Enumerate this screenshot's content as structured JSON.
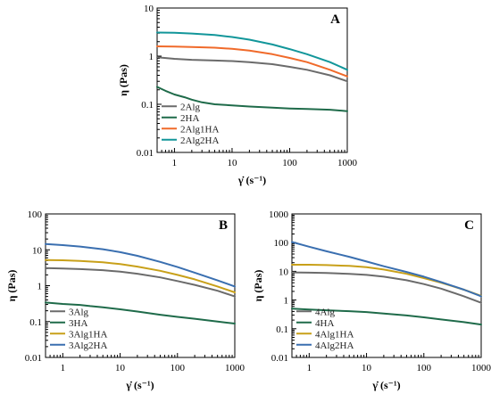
{
  "colors": {
    "Alg": "#6b6b6b",
    "HA": "#1f6b4a",
    "Alg1HA_A": "#f06a2a",
    "Alg1HA_BC": "#c8a019",
    "Alg2HA_A": "#12969a",
    "Alg2HA_BC": "#3a6fb0"
  },
  "chart_data": [
    {
      "panel": "A",
      "type": "line",
      "xscale": "log",
      "yscale": "log",
      "xlim": [
        0.5,
        1000
      ],
      "ylim": [
        0.01,
        10
      ],
      "xlabel": "γ̇ (s⁻¹)",
      "ylabel": "η (Pas)",
      "xticks": [
        "1",
        "10",
        "100",
        "1000"
      ],
      "yticks": [
        "0.01",
        "0.1",
        "1",
        "10"
      ],
      "legend_position": "bottom-left",
      "series": [
        {
          "name": "2Alg",
          "color_key": "Alg",
          "x": [
            0.5,
            1,
            2,
            5,
            10,
            20,
            50,
            100,
            200,
            500,
            1000
          ],
          "y": [
            0.95,
            0.88,
            0.84,
            0.81,
            0.79,
            0.75,
            0.68,
            0.6,
            0.52,
            0.4,
            0.3
          ]
        },
        {
          "name": "2HA",
          "color_key": "HA",
          "x": [
            0.5,
            0.7,
            1,
            1.5,
            2,
            3,
            5,
            10,
            20,
            50,
            100,
            200,
            500,
            1000
          ],
          "y": [
            0.23,
            0.19,
            0.16,
            0.14,
            0.125,
            0.11,
            0.1,
            0.095,
            0.09,
            0.085,
            0.082,
            0.08,
            0.077,
            0.072
          ]
        },
        {
          "name": "2Alg1HA",
          "color_key": "Alg1HA_A",
          "x": [
            0.5,
            1,
            2,
            5,
            10,
            20,
            50,
            100,
            200,
            500,
            1000
          ],
          "y": [
            1.6,
            1.58,
            1.55,
            1.5,
            1.42,
            1.3,
            1.1,
            0.92,
            0.75,
            0.52,
            0.38
          ]
        },
        {
          "name": "2Alg2HA",
          "color_key": "Alg2HA_A",
          "x": [
            0.5,
            1,
            2,
            5,
            10,
            20,
            50,
            100,
            200,
            500,
            1000
          ],
          "y": [
            3.1,
            3.05,
            2.95,
            2.75,
            2.5,
            2.2,
            1.75,
            1.4,
            1.1,
            0.75,
            0.52
          ]
        }
      ]
    },
    {
      "panel": "B",
      "type": "line",
      "xscale": "log",
      "yscale": "log",
      "xlim": [
        0.5,
        1000
      ],
      "ylim": [
        0.01,
        100
      ],
      "xlabel": "γ̇ (s⁻¹)",
      "ylabel": "η (Pas)",
      "xticks": [
        "1",
        "10",
        "100",
        "1000"
      ],
      "yticks": [
        "0.01",
        "0.1",
        "1",
        "10",
        "100"
      ],
      "legend_position": "bottom-left",
      "series": [
        {
          "name": "3Alg",
          "color_key": "Alg",
          "x": [
            0.5,
            1,
            2,
            5,
            10,
            20,
            50,
            100,
            200,
            500,
            1000
          ],
          "y": [
            3.1,
            3.0,
            2.9,
            2.7,
            2.45,
            2.15,
            1.7,
            1.35,
            1.05,
            0.72,
            0.5
          ]
        },
        {
          "name": "3HA",
          "color_key": "HA",
          "x": [
            0.5,
            1,
            2,
            3,
            5,
            10,
            20,
            50,
            100,
            200,
            500,
            1000
          ],
          "y": [
            0.34,
            0.31,
            0.29,
            0.27,
            0.25,
            0.22,
            0.19,
            0.155,
            0.135,
            0.12,
            0.1,
            0.088
          ]
        },
        {
          "name": "3Alg1HA",
          "color_key": "Alg1HA_BC",
          "x": [
            0.5,
            1,
            2,
            5,
            10,
            20,
            50,
            100,
            200,
            500,
            1000
          ],
          "y": [
            5.2,
            5.1,
            4.9,
            4.5,
            4.0,
            3.4,
            2.6,
            2.0,
            1.5,
            0.95,
            0.65
          ]
        },
        {
          "name": "3Alg2HA",
          "color_key": "Alg2HA_BC",
          "x": [
            0.5,
            1,
            2,
            5,
            10,
            20,
            50,
            100,
            200,
            500,
            1000
          ],
          "y": [
            14.5,
            13.5,
            12.3,
            10.4,
            8.6,
            6.8,
            4.6,
            3.3,
            2.3,
            1.4,
            0.95
          ]
        }
      ]
    },
    {
      "panel": "C",
      "type": "line",
      "xscale": "log",
      "yscale": "log",
      "xlim": [
        0.5,
        1000
      ],
      "ylim": [
        0.01,
        1000
      ],
      "xlabel": "γ̇ (s⁻¹)",
      "ylabel": "η (Pas)",
      "xticks": [
        "1",
        "10",
        "100",
        "1000"
      ],
      "yticks": [
        "0.01",
        "0.1",
        "1",
        "10",
        "100",
        "1000"
      ],
      "legend_position": "bottom-left",
      "series": [
        {
          "name": "4Alg",
          "color_key": "Alg",
          "x": [
            0.5,
            1,
            2,
            5,
            10,
            20,
            50,
            100,
            200,
            500,
            1000
          ],
          "y": [
            9.2,
            9.0,
            8.7,
            8.2,
            7.5,
            6.5,
            4.9,
            3.6,
            2.5,
            1.35,
            0.8
          ]
        },
        {
          "name": "4HA",
          "color_key": "HA",
          "x": [
            0.5,
            1,
            2,
            5,
            10,
            20,
            50,
            100,
            200,
            500,
            1000
          ],
          "y": [
            0.5,
            0.47,
            0.44,
            0.41,
            0.38,
            0.34,
            0.29,
            0.25,
            0.21,
            0.17,
            0.14
          ]
        },
        {
          "name": "4Alg1HA",
          "color_key": "Alg1HA_BC",
          "x": [
            0.5,
            1,
            2,
            5,
            10,
            20,
            50,
            100,
            200,
            500,
            1000
          ],
          "y": [
            17,
            17,
            16.5,
            15.5,
            14,
            11.5,
            8.2,
            5.8,
            4.0,
            2.3,
            1.4
          ]
        },
        {
          "name": "4Alg2HA",
          "color_key": "Alg2HA_BC",
          "x": [
            0.5,
            1,
            2,
            5,
            10,
            20,
            50,
            100,
            200,
            500,
            1000
          ],
          "y": [
            105,
            72,
            50,
            32,
            22,
            15,
            9.5,
            6.5,
            4.2,
            2.3,
            1.35
          ]
        }
      ]
    }
  ]
}
